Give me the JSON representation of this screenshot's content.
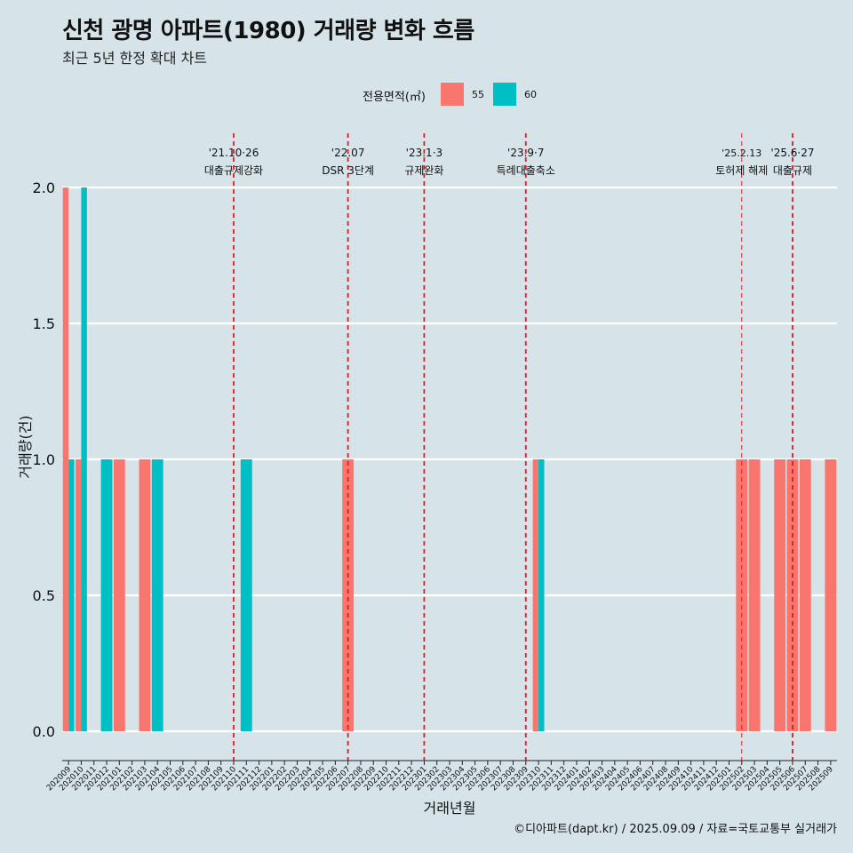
{
  "header": {
    "title": "신천 광명 아파트(1980) 거래량 변화 흐름",
    "subtitle": "최근 5년 한정 확대 차트"
  },
  "legend": {
    "title": "전용면적(㎡)",
    "items": [
      {
        "label": "55",
        "color": "#f8766d"
      },
      {
        "label": "60",
        "color": "#00bfc4"
      }
    ]
  },
  "caption": "©디아파트(dapt.kr) / 2025.09.09 / 자료=국토교통부 실거래가",
  "colors": {
    "background": "#d6e4ea",
    "grid": "#ffffff",
    "event_line": "#e41a1c"
  },
  "chart_data": {
    "type": "bar",
    "xlabel": "거래년월",
    "ylabel": "거래량(건)",
    "ylim": [
      0,
      2.0
    ],
    "yticks": [
      0.0,
      0.5,
      1.0,
      1.5,
      2.0
    ],
    "ytick_labels": [
      "0.0",
      "0.5",
      "1.0",
      "1.5",
      "2.0"
    ],
    "categories": [
      "202009",
      "202010",
      "202011",
      "202012",
      "202101",
      "202102",
      "202103",
      "202104",
      "202105",
      "202106",
      "202107",
      "202108",
      "202109",
      "202110",
      "202111",
      "202112",
      "202201",
      "202202",
      "202203",
      "202204",
      "202205",
      "202206",
      "202207",
      "202208",
      "202209",
      "202210",
      "202211",
      "202212",
      "202301",
      "202302",
      "202303",
      "202304",
      "202305",
      "202306",
      "202307",
      "202308",
      "202309",
      "202310",
      "202311",
      "202312",
      "202401",
      "202402",
      "202403",
      "202404",
      "202405",
      "202406",
      "202407",
      "202408",
      "202409",
      "202410",
      "202411",
      "202412",
      "202501",
      "202502",
      "202503",
      "202504",
      "202505",
      "202506",
      "202507",
      "202508",
      "202509"
    ],
    "series": [
      {
        "name": "55",
        "color": "#f8766d",
        "values": [
          2,
          1,
          0,
          0,
          1,
          0,
          1,
          0,
          0,
          0,
          0,
          0,
          0,
          0,
          0,
          0,
          0,
          0,
          0,
          0,
          0,
          0,
          1,
          0,
          0,
          0,
          0,
          0,
          0,
          0,
          0,
          0,
          0,
          0,
          0,
          0,
          0,
          1,
          0,
          0,
          0,
          0,
          0,
          0,
          0,
          0,
          0,
          0,
          0,
          0,
          0,
          0,
          0,
          1,
          1,
          0,
          1,
          1,
          1,
          0,
          1
        ]
      },
      {
        "name": "60",
        "color": "#00bfc4",
        "values": [
          1,
          2,
          0,
          1,
          0,
          0,
          0,
          1,
          0,
          0,
          0,
          0,
          0,
          0,
          1,
          0,
          0,
          0,
          0,
          0,
          0,
          0,
          0,
          0,
          0,
          0,
          0,
          0,
          0,
          0,
          0,
          0,
          0,
          0,
          0,
          0,
          0,
          1,
          0,
          0,
          0,
          0,
          0,
          0,
          0,
          0,
          0,
          0,
          0,
          0,
          0,
          0,
          0,
          0,
          0,
          0,
          0,
          0,
          0,
          0,
          0
        ]
      }
    ],
    "events": [
      {
        "date": "'21.10·26",
        "label": "대출규제강화",
        "at": "202110"
      },
      {
        "date": "'22.07",
        "label": "DSR 3단계",
        "at": "202207"
      },
      {
        "date": "'23.1·3",
        "label": "규제완화",
        "at": "202301"
      },
      {
        "date": "'23.9·7",
        "label": "특례대출축소",
        "at": "202309"
      },
      {
        "date": "'25.2.13",
        "label": "토허제 해제",
        "at": "202502"
      },
      {
        "date": "'25.6·27",
        "label": "대출규제",
        "at": "202506"
      }
    ]
  }
}
